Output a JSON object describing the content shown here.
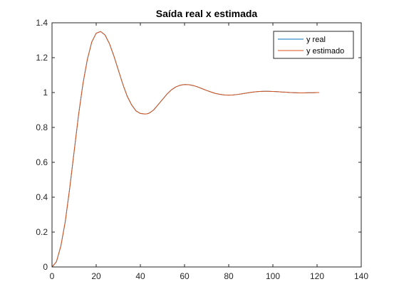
{
  "chart_data": {
    "type": "line",
    "title": "Saída real x estimada",
    "xlabel": "",
    "ylabel": "",
    "xlim": [
      0,
      140
    ],
    "ylim": [
      0,
      1.4
    ],
    "xticks": [
      0,
      20,
      40,
      60,
      80,
      100,
      120,
      140
    ],
    "yticks": [
      0,
      0.2,
      0.4,
      0.6,
      0.8,
      1,
      1.2,
      1.4
    ],
    "grid": false,
    "legend_position": "top-right",
    "series": [
      {
        "name": "y real",
        "color": "#0072BD",
        "x": [
          0,
          2,
          4,
          6,
          8,
          10,
          12,
          14,
          16,
          18,
          20,
          22,
          24,
          26,
          28,
          30,
          32,
          34,
          36,
          38,
          40,
          42,
          43,
          44,
          46,
          48,
          50,
          52,
          54,
          56,
          58,
          60,
          62,
          64,
          66,
          68,
          70,
          72,
          74,
          76,
          78,
          80,
          82,
          84,
          86,
          88,
          90,
          92,
          94,
          96,
          98,
          100,
          102,
          104,
          106,
          108,
          110,
          112,
          114,
          116,
          118,
          120,
          121
        ],
        "y": [
          0,
          0.03,
          0.12,
          0.26,
          0.45,
          0.66,
          0.87,
          1.05,
          1.19,
          1.29,
          1.34,
          1.35,
          1.33,
          1.28,
          1.21,
          1.13,
          1.05,
          0.98,
          0.93,
          0.895,
          0.88,
          0.877,
          0.878,
          0.882,
          0.9,
          0.93,
          0.96,
          0.99,
          1.015,
          1.032,
          1.042,
          1.046,
          1.045,
          1.04,
          1.032,
          1.022,
          1.012,
          1.003,
          0.995,
          0.99,
          0.986,
          0.985,
          0.986,
          0.989,
          0.993,
          0.997,
          1.001,
          1.004,
          1.006,
          1.007,
          1.007,
          1.006,
          1.005,
          1.003,
          1.002,
          1.0,
          0.999,
          0.998,
          0.998,
          0.999,
          0.999,
          1.0,
          1.0
        ]
      },
      {
        "name": "y estimado",
        "color": "#D95319",
        "x": [
          0,
          2,
          4,
          6,
          8,
          10,
          12,
          14,
          16,
          18,
          20,
          22,
          24,
          26,
          28,
          30,
          32,
          34,
          36,
          38,
          40,
          42,
          43,
          44,
          46,
          48,
          50,
          52,
          54,
          56,
          58,
          60,
          62,
          64,
          66,
          68,
          70,
          72,
          74,
          76,
          78,
          80,
          82,
          84,
          86,
          88,
          90,
          92,
          94,
          96,
          98,
          100,
          102,
          104,
          106,
          108,
          110,
          112,
          114,
          116,
          118,
          120,
          121
        ],
        "y": [
          0,
          0.03,
          0.12,
          0.26,
          0.45,
          0.66,
          0.87,
          1.05,
          1.19,
          1.29,
          1.34,
          1.35,
          1.33,
          1.28,
          1.21,
          1.13,
          1.05,
          0.98,
          0.93,
          0.895,
          0.88,
          0.877,
          0.878,
          0.882,
          0.9,
          0.93,
          0.96,
          0.99,
          1.015,
          1.032,
          1.042,
          1.046,
          1.045,
          1.04,
          1.032,
          1.022,
          1.012,
          1.003,
          0.995,
          0.99,
          0.986,
          0.985,
          0.986,
          0.989,
          0.993,
          0.997,
          1.001,
          1.004,
          1.006,
          1.007,
          1.007,
          1.006,
          1.005,
          1.003,
          1.002,
          1.0,
          0.999,
          0.998,
          0.998,
          0.999,
          0.999,
          1.0,
          1.0
        ]
      }
    ]
  }
}
